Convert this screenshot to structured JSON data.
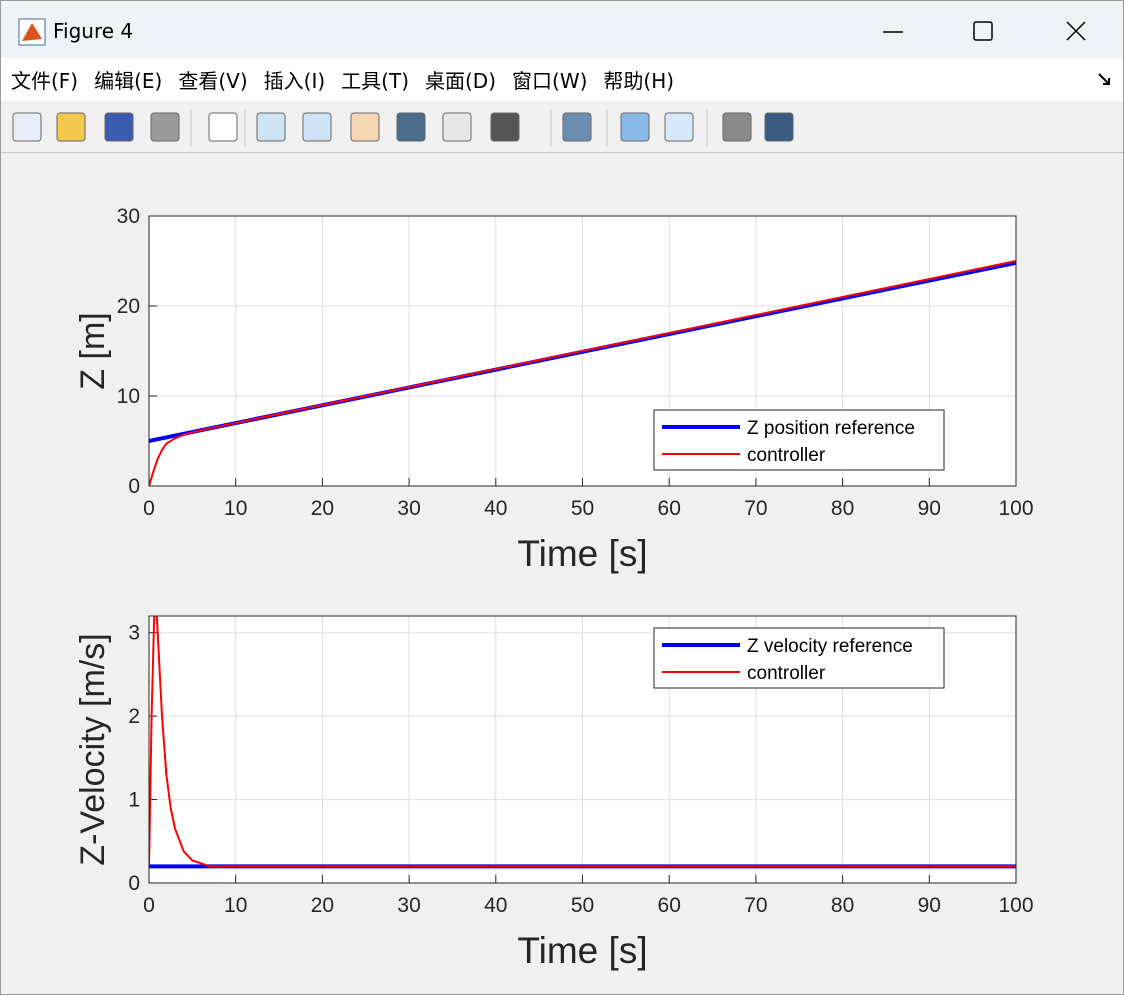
{
  "window": {
    "title": "Figure 4",
    "menu": [
      "文件(F)",
      "编辑(E)",
      "查看(V)",
      "插入(I)",
      "工具(T)",
      "桌面(D)",
      "窗口(W)",
      "帮助(H)"
    ]
  },
  "chart_data": [
    {
      "type": "line",
      "ylabel": "Z [m]",
      "xlabel": "Time [s]",
      "x": [
        0,
        0.5,
        1,
        1.5,
        2,
        3,
        4,
        6,
        100
      ],
      "series": [
        {
          "name": "Z position reference",
          "color": "#0000ff",
          "line_width": 4,
          "values": [
            5,
            5.1,
            5.2,
            5.3,
            5.4,
            5.6,
            5.8,
            6.2,
            24.8
          ]
        },
        {
          "name": "controller",
          "color": "#ff0000",
          "line_width": 2,
          "values": [
            0,
            1.6,
            3.0,
            4.0,
            4.7,
            5.3,
            5.7,
            6.2,
            25
          ]
        }
      ],
      "xlim": [
        0,
        100
      ],
      "ylim": [
        0,
        30
      ],
      "xticks": [
        0,
        10,
        20,
        30,
        40,
        50,
        60,
        70,
        80,
        90,
        100
      ],
      "yticks": [
        0,
        10,
        20,
        30
      ],
      "grid": true,
      "legend_location": "southeast"
    },
    {
      "type": "line",
      "ylabel": "Z-Velocity [m/s]",
      "xlabel": "Time [s]",
      "x": [
        0,
        0.3,
        0.6,
        0.9,
        1.2,
        1.5,
        2,
        2.5,
        3,
        4,
        5,
        7,
        100
      ],
      "series": [
        {
          "name": "Z velocity reference",
          "color": "#0000ff",
          "line_width": 4,
          "values": [
            0.2,
            0.2,
            0.2,
            0.2,
            0.2,
            0.2,
            0.2,
            0.2,
            0.2,
            0.2,
            0.2,
            0.2,
            0.2
          ]
        },
        {
          "name": "controller",
          "color": "#ff0000",
          "line_width": 2,
          "values": [
            0.2,
            2.0,
            3.2,
            3.2,
            2.6,
            2.0,
            1.3,
            0.9,
            0.65,
            0.38,
            0.27,
            0.2,
            0.2
          ]
        }
      ],
      "xlim": [
        0,
        100
      ],
      "ylim": [
        0,
        3.2
      ],
      "xticks": [
        0,
        10,
        20,
        30,
        40,
        50,
        60,
        70,
        80,
        90,
        100
      ],
      "yticks": [
        0,
        1,
        2,
        3
      ],
      "grid": true,
      "legend_location": "northeast"
    }
  ]
}
